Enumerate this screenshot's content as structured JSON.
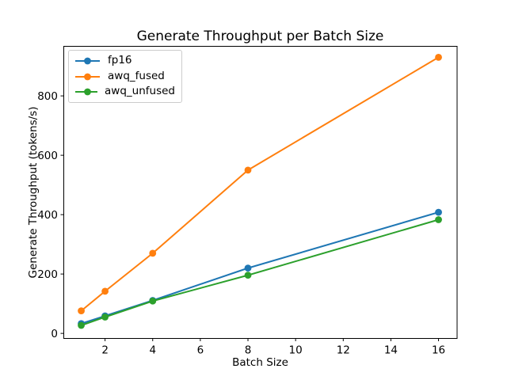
{
  "figure": {
    "background": "#ffffff",
    "text_color": "#000000",
    "spine_color": "#000000"
  },
  "chart_data": {
    "type": "line",
    "title": "Generate Throughput per Batch Size",
    "xlabel": "Batch Size",
    "ylabel": "Generate Throughput (tokens/s)",
    "x": [
      1,
      2,
      4,
      8,
      16
    ],
    "series": [
      {
        "name": "fp16",
        "color": "#1f77b4",
        "values": [
          33,
          59,
          111,
          220,
          408
        ]
      },
      {
        "name": "awq_fused",
        "color": "#ff7f0e",
        "values": [
          76,
          142,
          270,
          550,
          930
        ]
      },
      {
        "name": "awq_unfused",
        "color": "#2ca02c",
        "values": [
          27,
          55,
          109,
          196,
          383
        ]
      }
    ],
    "xticks": [
      2,
      4,
      6,
      8,
      10,
      12,
      14,
      16
    ],
    "yticks": [
      0,
      200,
      400,
      600,
      800
    ],
    "xlim": [
      0.25,
      16.78
    ],
    "ylim": [
      -17,
      967
    ],
    "grid": false,
    "marker": "o",
    "legend_position": "upper-left"
  }
}
